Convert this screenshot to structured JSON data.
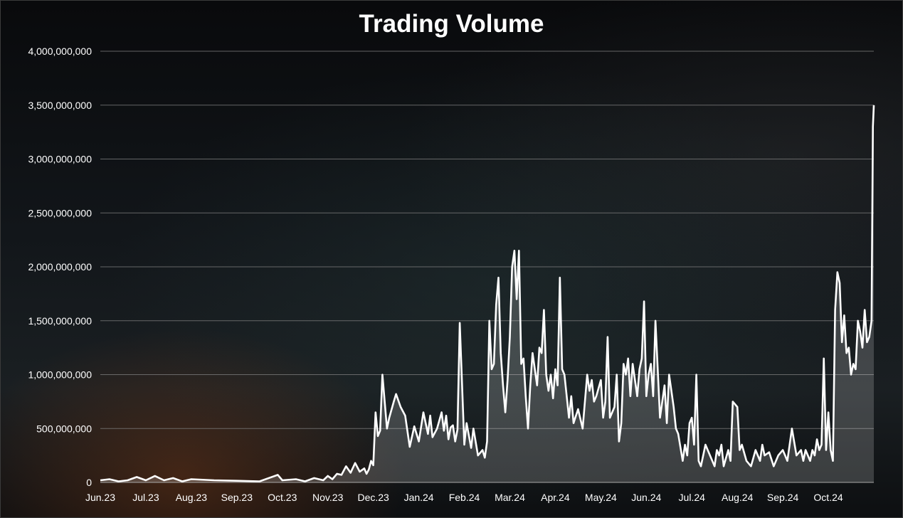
{
  "chart_data": {
    "type": "area",
    "title": "Trading Volume",
    "xlabel": "",
    "ylabel": "",
    "ylim": [
      0,
      4000000000
    ],
    "y_ticks": [
      "0",
      "500,000,000",
      "1,000,000,000",
      "1,500,000,000",
      "2,000,000,000",
      "2,500,000,000",
      "3,000,000,000",
      "3,500,000,000",
      "4,000,000,000"
    ],
    "x_ticks": [
      "Jun.23",
      "Jul.23",
      "Aug.23",
      "Sep.23",
      "Oct.23",
      "Nov.23",
      "Dec.23",
      "Jan.24",
      "Feb.24",
      "Mar.24",
      "Apr.24",
      "May.24",
      "Jun.24",
      "Jul.24",
      "Aug.24",
      "Sep.24",
      "Oct.24"
    ],
    "grid": true,
    "legend": "none",
    "colors": {
      "line": "#ffffff",
      "fill": "rgba(255,255,255,0.18)",
      "grid": "#7a7a7a",
      "text": "#ffffff"
    },
    "x_months_span": [
      0,
      17
    ],
    "series": [
      {
        "x": [
          0,
          0.2,
          0.4,
          0.6,
          0.8,
          1.0,
          1.2,
          1.4,
          1.6,
          1.8,
          2.0,
          2.5,
          3.0,
          3.5,
          3.9,
          4.0,
          4.3,
          4.5,
          4.7,
          4.9,
          5.0,
          5.1,
          5.2,
          5.3,
          5.4,
          5.5,
          5.6,
          5.7,
          5.8,
          5.85,
          5.9,
          5.95,
          6.0,
          6.05,
          6.1,
          6.15,
          6.2,
          6.3,
          6.35,
          6.45,
          6.5,
          6.6,
          6.7,
          6.8,
          6.9,
          7.0,
          7.1,
          7.2,
          7.25,
          7.3,
          7.4,
          7.5,
          7.55,
          7.6,
          7.65,
          7.7,
          7.75,
          7.8,
          7.85,
          7.9,
          8.0,
          8.05,
          8.15,
          8.2,
          8.3,
          8.4,
          8.45,
          8.5,
          8.55,
          8.6,
          8.65,
          8.7,
          8.75,
          8.8,
          8.85,
          8.9,
          8.95,
          9.0,
          9.05,
          9.1,
          9.15,
          9.2,
          9.25,
          9.3,
          9.35,
          9.4,
          9.45,
          9.5,
          9.55,
          9.6,
          9.65,
          9.7,
          9.75,
          9.8,
          9.85,
          9.9,
          9.95,
          10.0,
          10.05,
          10.1,
          10.15,
          10.2,
          10.3,
          10.35,
          10.4,
          10.5,
          10.6,
          10.7,
          10.75,
          10.8,
          10.85,
          10.9,
          11.0,
          11.05,
          11.1,
          11.15,
          11.2,
          11.3,
          11.35,
          11.4,
          11.45,
          11.5,
          11.55,
          11.6,
          11.65,
          11.7,
          11.75,
          11.8,
          11.85,
          11.9,
          11.95,
          12.0,
          12.05,
          12.1,
          12.15,
          12.2,
          12.3,
          12.4,
          12.45,
          12.5,
          12.6,
          12.65,
          12.7,
          12.8,
          12.85,
          12.9,
          12.95,
          13.0,
          13.05,
          13.1,
          13.15,
          13.2,
          13.3,
          13.4,
          13.5,
          13.55,
          13.6,
          13.65,
          13.7,
          13.8,
          13.85,
          13.9,
          14.0,
          14.05,
          14.1,
          14.2,
          14.3,
          14.4,
          14.5,
          14.55,
          14.6,
          14.7,
          14.8,
          14.9,
          15.0,
          15.1,
          15.2,
          15.3,
          15.4,
          15.45,
          15.5,
          15.55,
          15.6,
          15.65,
          15.7,
          15.75,
          15.8,
          15.85,
          15.9,
          15.95,
          16.0,
          16.05,
          16.1,
          16.15,
          16.2,
          16.25,
          16.3,
          16.35,
          16.4,
          16.45,
          16.5,
          16.55,
          16.6,
          16.65,
          16.7,
          16.75,
          16.8,
          16.85,
          16.9,
          16.95,
          16.98,
          17.0
        ],
        "y": [
          20000000,
          30000000,
          10000000,
          20000000,
          50000000,
          20000000,
          60000000,
          20000000,
          40000000,
          10000000,
          30000000,
          20000000,
          15000000,
          10000000,
          70000000,
          20000000,
          30000000,
          10000000,
          40000000,
          20000000,
          60000000,
          30000000,
          80000000,
          70000000,
          150000000,
          90000000,
          180000000,
          100000000,
          130000000,
          80000000,
          120000000,
          200000000,
          160000000,
          650000000,
          430000000,
          480000000,
          1000000000,
          500000000,
          600000000,
          750000000,
          820000000,
          700000000,
          620000000,
          330000000,
          520000000,
          380000000,
          650000000,
          450000000,
          620000000,
          420000000,
          500000000,
          650000000,
          480000000,
          620000000,
          400000000,
          510000000,
          530000000,
          380000000,
          490000000,
          1480000000,
          350000000,
          550000000,
          320000000,
          500000000,
          250000000,
          300000000,
          230000000,
          380000000,
          1500000000,
          1050000000,
          1100000000,
          1650000000,
          1900000000,
          1200000000,
          900000000,
          650000000,
          950000000,
          1350000000,
          2000000000,
          2150000000,
          1700000000,
          2150000000,
          1100000000,
          1150000000,
          800000000,
          500000000,
          900000000,
          1200000000,
          1050000000,
          900000000,
          1250000000,
          1200000000,
          1600000000,
          1000000000,
          850000000,
          1000000000,
          780000000,
          1050000000,
          900000000,
          1900000000,
          1050000000,
          1000000000,
          600000000,
          800000000,
          550000000,
          680000000,
          500000000,
          1000000000,
          850000000,
          950000000,
          750000000,
          800000000,
          950000000,
          600000000,
          750000000,
          1350000000,
          600000000,
          700000000,
          1000000000,
          380000000,
          550000000,
          1100000000,
          1000000000,
          1150000000,
          800000000,
          1100000000,
          950000000,
          800000000,
          1050000000,
          1150000000,
          1680000000,
          800000000,
          1000000000,
          1100000000,
          800000000,
          1500000000,
          600000000,
          900000000,
          550000000,
          1000000000,
          700000000,
          500000000,
          450000000,
          200000000,
          350000000,
          250000000,
          550000000,
          600000000,
          350000000,
          1000000000,
          200000000,
          150000000,
          350000000,
          250000000,
          150000000,
          300000000,
          250000000,
          350000000,
          150000000,
          300000000,
          200000000,
          750000000,
          700000000,
          300000000,
          350000000,
          200000000,
          150000000,
          300000000,
          200000000,
          350000000,
          250000000,
          280000000,
          150000000,
          250000000,
          300000000,
          200000000,
          500000000,
          250000000,
          300000000,
          200000000,
          300000000,
          250000000,
          200000000,
          300000000,
          250000000,
          400000000,
          300000000,
          350000000,
          1150000000,
          300000000,
          650000000,
          300000000,
          200000000,
          1600000000,
          1950000000,
          1850000000,
          1300000000,
          1550000000,
          1200000000,
          1250000000,
          1000000000,
          1100000000,
          1050000000,
          1500000000,
          1400000000,
          1250000000,
          1600000000,
          1300000000,
          1350000000,
          1500000000,
          3300000000,
          3500000000
        ]
      }
    ]
  }
}
